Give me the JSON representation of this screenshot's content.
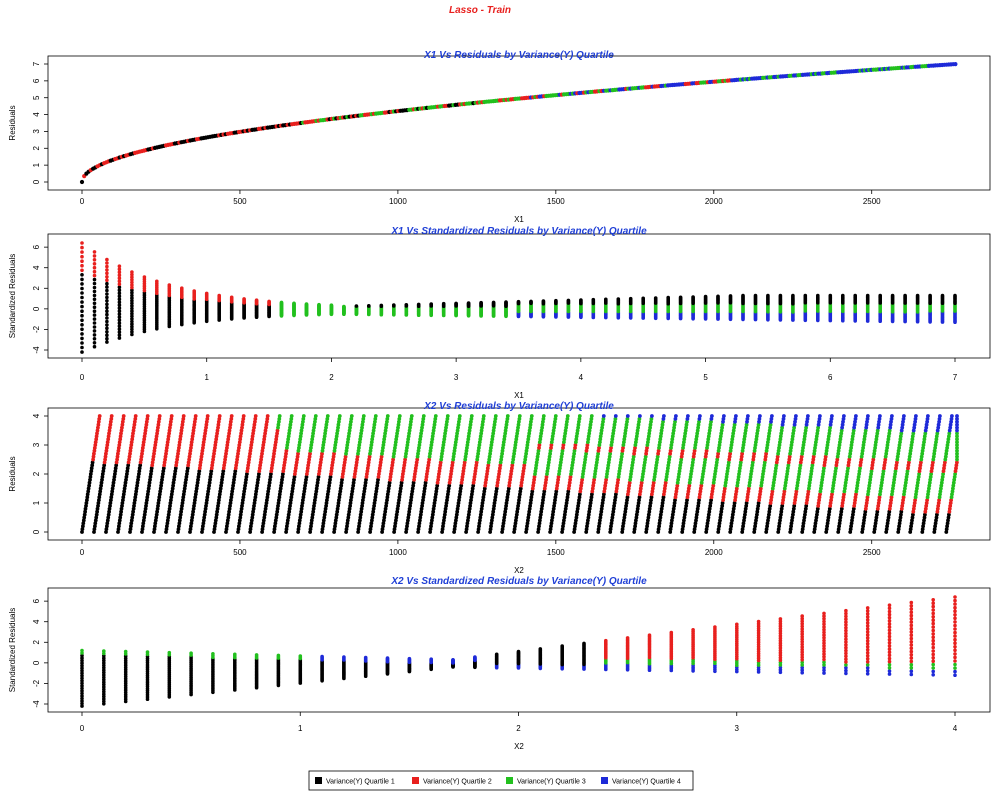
{
  "main_title": "Lasso - Train",
  "colors": {
    "quartile_1": "#000000",
    "quartile_2": "#e8201e",
    "quartile_3": "#22c01e",
    "quartile_4": "#1e2ad8",
    "title": "#1f3fd6",
    "main_title": "#e8201e"
  },
  "legend": {
    "entries": [
      "Variance(Y) Quartile 1",
      "Variance(Y) Quartile 2",
      "Variance(Y) Quartile 3",
      "Variance(Y) Quartile 4"
    ],
    "placement": "bottom-center"
  },
  "chart_data": [
    {
      "type": "scatter",
      "title": "X1 Vs Residuals by Variance(Y) Quartile",
      "xlabel": "X1",
      "ylabel": "Residuals",
      "xlim": [
        0,
        2770
      ],
      "ylim": [
        0,
        7
      ],
      "x_ticks": [
        0,
        500,
        1000,
        1500,
        2000,
        2500
      ],
      "y_ticks": [
        0,
        1,
        2,
        3,
        4,
        5,
        6,
        7
      ],
      "grid": false,
      "pattern": "monotone increasing curve, residual = sqrt(X1 / 56.5); quartile colours interleave along the curve",
      "series": [
        {
          "name": "Variance(Y) Quartile 1",
          "points": [
            [
              0,
              0
            ],
            [
              100,
              1.33
            ],
            [
              300,
              2.3
            ],
            [
              700,
              3.52
            ]
          ]
        },
        {
          "name": "Variance(Y) Quartile 2",
          "points": [
            [
              100,
              1.33
            ],
            [
              400,
              2.66
            ],
            [
              900,
              3.99
            ],
            [
              1400,
              4.98
            ]
          ]
        },
        {
          "name": "Variance(Y) Quartile 3",
          "points": [
            [
              800,
              3.76
            ],
            [
              1300,
              4.8
            ],
            [
              1900,
              5.8
            ],
            [
              2400,
              6.52
            ]
          ]
        },
        {
          "name": "Variance(Y) Quartile 4",
          "points": [
            [
              1700,
              5.49
            ],
            [
              2200,
              6.24
            ],
            [
              2600,
              6.78
            ],
            [
              2770,
              7.0
            ]
          ]
        }
      ]
    },
    {
      "type": "scatter",
      "title": "X1 Vs Standardized Residuals by Variance(Y) Quartile",
      "xlabel": "X1",
      "ylabel": "Standardized Residuals",
      "xlim": [
        0,
        7
      ],
      "ylim": [
        -4,
        6.5
      ],
      "x_ticks": [
        0,
        1,
        2,
        3,
        4,
        5,
        6,
        7
      ],
      "y_ticks": [
        -4,
        -2,
        0,
        2,
        4,
        6
      ],
      "grid": false,
      "pattern": "vertical strips every 0.1 in X1; spread shrinks toward X1 = 2 then grows again",
      "series": [
        {
          "name": "Variance(Y) Quartile 1",
          "x_range": [
            0,
            2.3
          ],
          "y_range": [
            -4.2,
            3.2
          ]
        },
        {
          "name": "Variance(Y) Quartile 2",
          "x_range": [
            0,
            1.6
          ],
          "y_range": [
            0.5,
            6.4
          ]
        },
        {
          "name": "Variance(Y) Quartile 3",
          "x_range": [
            1.5,
            7
          ],
          "y_range": [
            -0.6,
            1.3
          ]
        },
        {
          "name": "Variance(Y) Quartile 4",
          "x_range": [
            3.5,
            7
          ],
          "y_range": [
            -1.2,
            0.2
          ]
        }
      ]
    },
    {
      "type": "scatter",
      "title": "X2 Vs Residuals by Variance(Y) Quartile",
      "xlabel": "X2",
      "ylabel": "Residuals",
      "xlim": [
        0,
        2770
      ],
      "ylim": [
        0,
        4
      ],
      "x_ticks": [
        0,
        500,
        1000,
        1500,
        2000,
        2500
      ],
      "y_ticks": [
        0,
        1,
        2,
        3,
        4
      ],
      "grid": false,
      "pattern": "slanted strips every ~40 X2 units spanning residual 0 to 4; quartile bands shift from Q1/Q2 at low X2 to Q3/Q4 at high X2",
      "series": [
        {
          "name": "Variance(Y) Quartile 1",
          "x_range": [
            0,
            2700
          ],
          "y_range": [
            0,
            2.4
          ]
        },
        {
          "name": "Variance(Y) Quartile 2",
          "x_range": [
            30,
            2700
          ],
          "y_range": [
            0.2,
            4
          ]
        },
        {
          "name": "Variance(Y) Quartile 3",
          "x_range": [
            650,
            2730
          ],
          "y_range": [
            0.4,
            4
          ]
        },
        {
          "name": "Variance(Y) Quartile 4",
          "x_range": [
            1450,
            2740
          ],
          "y_range": [
            1,
            4
          ]
        }
      ]
    },
    {
      "type": "scatter",
      "title": "X2 Vs Standardized Residuals by Variance(Y) Quartile",
      "xlabel": "X2",
      "ylabel": "Standardized Residuals",
      "xlim": [
        0,
        4
      ],
      "ylim": [
        -4,
        6.5
      ],
      "x_ticks": [
        0,
        1,
        2,
        3,
        4
      ],
      "y_ticks": [
        -4,
        -2,
        0,
        2,
        4,
        6
      ],
      "grid": false,
      "pattern": "vertical strips every 0.1 in X2; spread narrows near X2 = 1.6 then widens upward",
      "series": [
        {
          "name": "Variance(Y) Quartile 1",
          "x_range": [
            0,
            2.3
          ],
          "y_range": [
            -4.2,
            2.6
          ]
        },
        {
          "name": "Variance(Y) Quartile 2",
          "x_range": [
            1.9,
            4
          ],
          "y_range": [
            -0.4,
            6.4
          ]
        },
        {
          "name": "Variance(Y) Quartile 3",
          "x_range": [
            0,
            4
          ],
          "y_range": [
            0,
            1.3
          ]
        },
        {
          "name": "Variance(Y) Quartile 4",
          "x_range": [
            1.1,
            4
          ],
          "y_range": [
            -1.2,
            0.8
          ]
        }
      ]
    }
  ]
}
